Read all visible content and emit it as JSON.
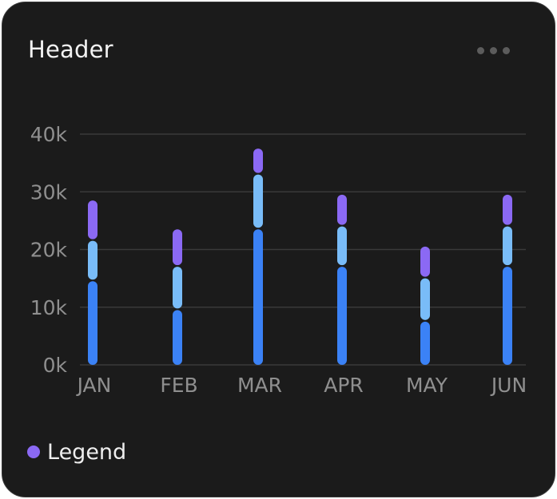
{
  "card": {
    "title": "Header",
    "menu_icon": "more-horizontal-icon"
  },
  "colors": {
    "background": "#1b1b1b",
    "grid": "#3a3a3a",
    "axis_text": "#8f8f8f",
    "series_1": "#3b82f6",
    "series_2": "#79bcf8",
    "series_3": "#8b69f4"
  },
  "chart_data": {
    "type": "bar",
    "stacked": true,
    "categories": [
      "JAN",
      "FEB",
      "MAR",
      "APR",
      "MAY",
      "JUN"
    ],
    "y_ticks": [
      "0k",
      "10k",
      "20k",
      "30k",
      "40k"
    ],
    "ylim": [
      0,
      40000
    ],
    "grid": true,
    "series": [
      {
        "values": [
          14500,
          9500,
          23500,
          17000,
          7500,
          17000
        ],
        "color": "#3b82f6"
      },
      {
        "values": [
          7000,
          7500,
          9500,
          7000,
          7500,
          7000
        ],
        "color": "#79bcf8"
      },
      {
        "values": [
          7000,
          6500,
          4500,
          5500,
          5500,
          5500
        ],
        "color": "#8b69f4"
      }
    ]
  },
  "legend": {
    "label": "Legend",
    "color": "#8b69f4"
  }
}
